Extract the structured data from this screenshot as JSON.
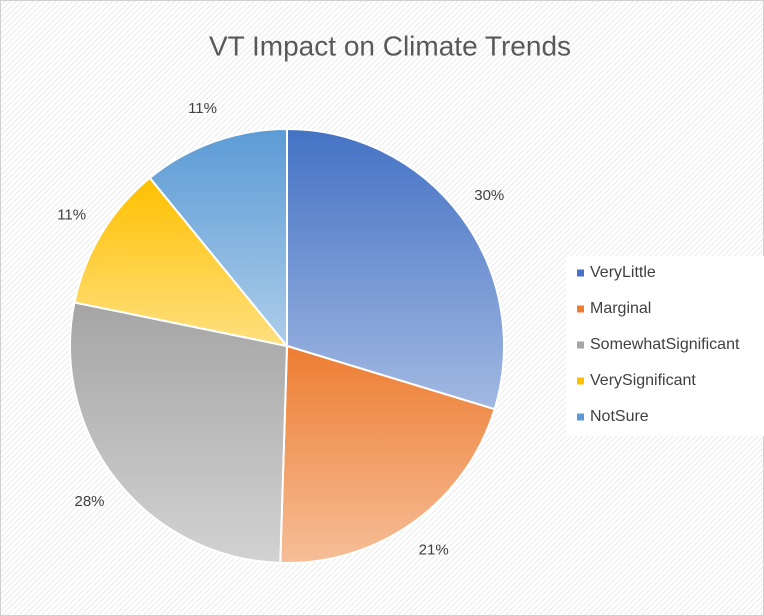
{
  "chart_data": {
    "type": "pie",
    "title": "VT Impact on Climate Trends",
    "categories": [
      "VeryLittle",
      "Marginal",
      "SomewhatSignificant",
      "VerySignificant",
      "NotSure"
    ],
    "values": [
      30,
      21,
      28,
      11,
      11
    ],
    "value_labels": [
      "30%",
      "21%",
      "28%",
      "11%",
      "11%"
    ],
    "colors": [
      "#4472c4",
      "#ed7d31",
      "#a5a5a5",
      "#ffc000",
      "#5b9bd5"
    ],
    "legend": "right"
  }
}
